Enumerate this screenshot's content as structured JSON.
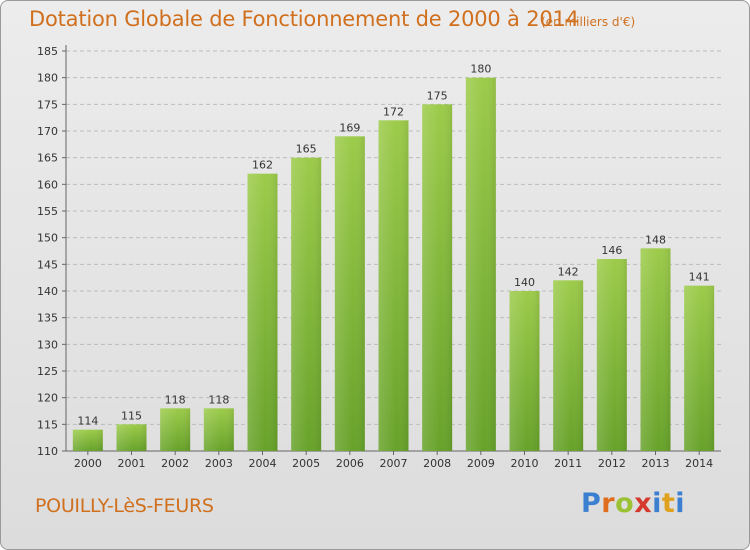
{
  "header": {
    "title": "Dotation Globale de Fonctionnement de 2000 à 2014",
    "subtitle": "(en milliers d'€)"
  },
  "footer": {
    "place": "POUILLY-LèS-FEURS",
    "logo": {
      "p": "P",
      "r": "r",
      "o": "o",
      "x": "x",
      "i": "i",
      "t": "t",
      "i2": "i"
    }
  },
  "colors": {
    "bar_light": "#9ccb4a",
    "bar_dark": "#67a22a",
    "title": "#d0701e",
    "grid": "#bcbcbc"
  },
  "chart_data": {
    "type": "bar",
    "title": "Dotation Globale de Fonctionnement de 2000 à 2014",
    "subtitle": "(en milliers d'€)",
    "xlabel": "",
    "ylabel": "",
    "categories": [
      "2000",
      "2001",
      "2002",
      "2003",
      "2004",
      "2005",
      "2006",
      "2007",
      "2008",
      "2009",
      "2010",
      "2011",
      "2012",
      "2013",
      "2014"
    ],
    "values": [
      114,
      115,
      118,
      118,
      162,
      165,
      169,
      172,
      175,
      180,
      140,
      142,
      146,
      148,
      141
    ],
    "ylim": [
      110,
      185
    ],
    "yticks": [
      110,
      115,
      120,
      125,
      130,
      135,
      140,
      145,
      150,
      155,
      160,
      165,
      170,
      175,
      180,
      185
    ],
    "grid": true,
    "legend": "none"
  }
}
